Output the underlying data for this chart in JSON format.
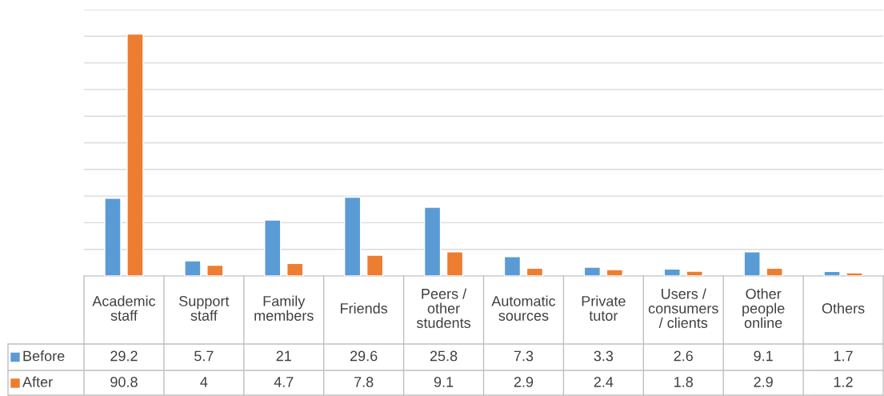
{
  "chart_data": {
    "type": "bar",
    "categories": [
      "Academic\nstaff",
      "Support\nstaff",
      "Family\nmembers",
      "Friends",
      "Peers /\nother\nstudents",
      "Automatic\nsources",
      "Private\ntutor",
      "Users /\nconsumers\n/ clients",
      "Other\npeople\nonline",
      "Others"
    ],
    "series": [
      {
        "name": "Before",
        "color": "#5b9bd5",
        "values": [
          29.2,
          5.7,
          21,
          29.6,
          25.8,
          7.3,
          3.3,
          2.6,
          9.1,
          1.7
        ]
      },
      {
        "name": "After",
        "color": "#ed7d31",
        "values": [
          90.8,
          4,
          4.7,
          7.8,
          9.1,
          2.9,
          2.4,
          1.8,
          2.9,
          1.2
        ]
      }
    ],
    "ylim": [
      0,
      100
    ],
    "yticks": [
      {
        "value": 0,
        "label": null
      },
      {
        "value": 10,
        "label": null
      },
      {
        "value": 20,
        "label": null
      },
      {
        "value": 30,
        "label": null
      },
      {
        "value": 40,
        "label": null
      },
      {
        "value": 50,
        "label": null
      },
      {
        "value": 60,
        "label": null
      },
      {
        "value": 70,
        "label": null
      },
      {
        "value": 80,
        "label": null
      },
      {
        "value": 90,
        "label": null
      },
      {
        "value": 100,
        "label": null
      }
    ],
    "grid": "y",
    "legend": "bottom left",
    "data_labels": true
  }
}
